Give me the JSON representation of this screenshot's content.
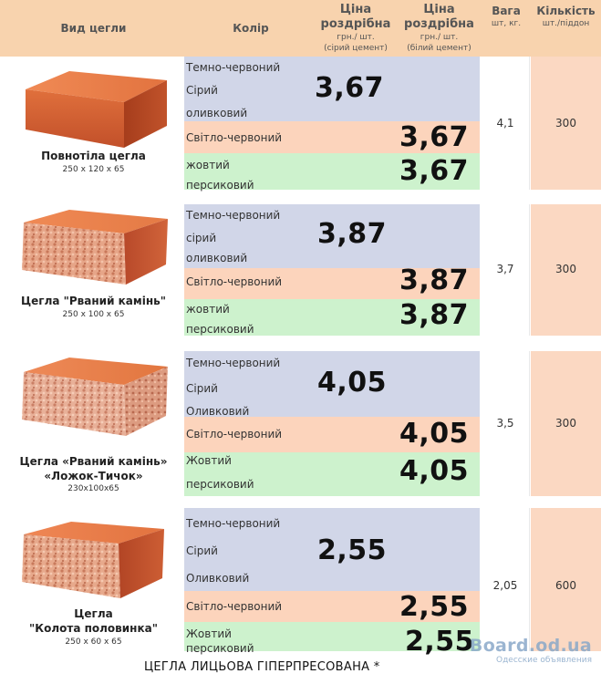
{
  "header": {
    "type_label": "Вид цегли",
    "color_label": "Колір",
    "price_grey_l1": "Ціна",
    "price_grey_l2": "роздрібна",
    "price_grey_l3": "грн./ шт.",
    "price_grey_l4": "(сірий цемент)",
    "price_white_l1": "Ціна",
    "price_white_l2": "роздрібна",
    "price_white_l3": "грн./ шт.",
    "price_white_l4": "(білий цемент)",
    "weight_l1": "Вага",
    "weight_l2": "шт, кг.",
    "qty_l1": "Кількість",
    "qty_l2": "шт./піддон"
  },
  "bricks": [
    {
      "name_l1": "Повнотіла цегла",
      "name_l2": "",
      "name_l3": "",
      "size": "250 x 120 x 65",
      "colors": [
        "Темно-червоний",
        "Сірий",
        "оливковий",
        "Світло-червоний",
        "жовтий",
        "персиковий"
      ],
      "price_grey": "3,67",
      "price_light_red": "3,67",
      "price_yellow": "3,67",
      "weight": "4,1",
      "qty": "300"
    },
    {
      "name_l1": "Цегла \"Рваний камінь\"",
      "name_l2": "",
      "name_l3": "",
      "size": "250 x 100 x 65",
      "colors": [
        "Темно-червоний",
        "сірий",
        "оливковий",
        "Світло-червоний",
        "жовтий",
        "персиковий"
      ],
      "price_grey": "3,87",
      "price_light_red": "3,87",
      "price_yellow": "3,87",
      "weight": "3,7",
      "qty": "300"
    },
    {
      "name_l1": "Цегла «Рваний камінь»",
      "name_l2": "«Ложок-Тичок»",
      "name_l3": "",
      "size": "230x100x65",
      "colors": [
        "Темно-червоний",
        "Сірий",
        "Оливковий",
        "Світло-червоний",
        "Жовтий",
        "персиковий"
      ],
      "price_grey": "4,05",
      "price_light_red": "4,05",
      "price_yellow": "4,05",
      "weight": "3,5",
      "qty": "300"
    },
    {
      "name_l1": "Цегла",
      "name_l2": "\"Колота половинка\"",
      "name_l3": "",
      "size": "250 x 60 x 65",
      "colors": [
        "Темно-червоний",
        "Сірий",
        "Оливковий",
        "Світло-червоний",
        "Жовтий",
        "персиковий"
      ],
      "price_grey": "2,55",
      "price_light_red": "2,55",
      "price_yellow": "2,55",
      "weight": "2,05",
      "qty": "600"
    }
  ],
  "footer": {
    "title": "ЦЕГЛА ЛИЦЬОВА ГІПЕРПРЕСОВАНА *"
  },
  "watermark": {
    "main": "Board.od.ua",
    "sub": "Одесские объявления"
  },
  "colors": {
    "header_bg": "#f8d3ae",
    "grey_band": "#d1d6e8",
    "pink_band": "#fcd4bc",
    "green_band": "#cdf2cd",
    "brick": "#d9683a"
  }
}
